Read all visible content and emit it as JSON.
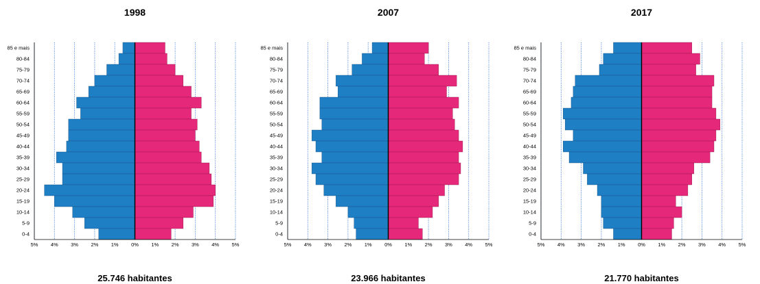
{
  "chart_data": [
    {
      "type": "bar",
      "title": "1998",
      "total": "25.746 habitantes",
      "categories": [
        "85 e mais",
        "80-84",
        "75-79",
        "70-74",
        "65-69",
        "60-64",
        "55-59",
        "50-54",
        "45-49",
        "40-44",
        "35-39",
        "30-34",
        "25-29",
        "20-24",
        "15-19",
        "10-14",
        "5-9",
        "0-4"
      ],
      "series": [
        {
          "side": "left",
          "values": [
            0.6,
            0.8,
            1.4,
            2.0,
            2.3,
            2.9,
            2.7,
            3.3,
            3.3,
            3.4,
            3.9,
            3.6,
            3.6,
            4.5,
            4.0,
            3.1,
            2.5,
            1.8
          ]
        },
        {
          "side": "right",
          "values": [
            1.5,
            1.6,
            2.0,
            2.4,
            2.8,
            3.3,
            2.8,
            3.1,
            3.0,
            3.2,
            3.3,
            3.7,
            3.8,
            4.0,
            3.9,
            2.9,
            2.4,
            1.8
          ]
        }
      ],
      "xlim": [
        -5,
        5
      ],
      "xticks": [
        "5%",
        "4%",
        "3%",
        "2%",
        "1%",
        "0%",
        "1%",
        "2%",
        "3%",
        "4%",
        "5%"
      ]
    },
    {
      "type": "bar",
      "title": "2007",
      "total": "23.966 habitantes",
      "categories": [
        "85 e mais",
        "80-84",
        "75-79",
        "70-74",
        "65-69",
        "60-64",
        "55-59",
        "50-54",
        "45-49",
        "40-44",
        "35-39",
        "30-34",
        "25-29",
        "20-24",
        "15-19",
        "10-14",
        "5-9",
        "0-4"
      ],
      "series": [
        {
          "side": "left",
          "values": [
            0.8,
            1.3,
            1.8,
            2.6,
            2.5,
            3.4,
            3.4,
            3.3,
            3.8,
            3.6,
            3.3,
            3.8,
            3.6,
            3.2,
            2.6,
            2.0,
            1.7,
            1.6
          ]
        },
        {
          "side": "right",
          "values": [
            2.0,
            1.8,
            2.5,
            3.4,
            2.9,
            3.5,
            3.2,
            3.3,
            3.5,
            3.7,
            3.5,
            3.6,
            3.5,
            2.8,
            2.5,
            2.2,
            1.5,
            1.7
          ]
        }
      ],
      "xlim": [
        -5,
        5
      ],
      "xticks": [
        "5%",
        "4%",
        "3%",
        "2%",
        "1%",
        "0%",
        "1%",
        "2%",
        "3%",
        "4%",
        "5%"
      ]
    },
    {
      "type": "bar",
      "title": "2017",
      "total": "21.770 habitantes",
      "categories": [
        "85 e mais",
        "80-84",
        "75-79",
        "70-74",
        "65-69",
        "60-64",
        "55-59",
        "50-54",
        "45-49",
        "40-44",
        "35-39",
        "30-34",
        "25-29",
        "20-24",
        "15-19",
        "10-14",
        "5-9",
        "0-4"
      ],
      "series": [
        {
          "side": "left",
          "values": [
            1.4,
            1.9,
            2.1,
            3.3,
            3.4,
            3.5,
            3.9,
            3.8,
            3.4,
            3.9,
            3.6,
            2.9,
            2.7,
            2.2,
            2.0,
            2.0,
            1.9,
            1.4
          ]
        },
        {
          "side": "right",
          "values": [
            2.5,
            2.9,
            2.7,
            3.6,
            3.5,
            3.5,
            3.7,
            3.9,
            3.7,
            3.6,
            3.4,
            2.6,
            2.5,
            2.3,
            1.7,
            2.0,
            1.6,
            1.5
          ]
        }
      ],
      "xlim": [
        -5,
        5
      ],
      "xticks": [
        "5%",
        "4%",
        "3%",
        "2%",
        "1%",
        "0%",
        "1%",
        "2%",
        "3%",
        "4%",
        "5%"
      ]
    }
  ],
  "colors": {
    "left": "#1f7fc4",
    "right": "#e6287a",
    "grid": "#2f6fd6",
    "axis": "#000000"
  }
}
